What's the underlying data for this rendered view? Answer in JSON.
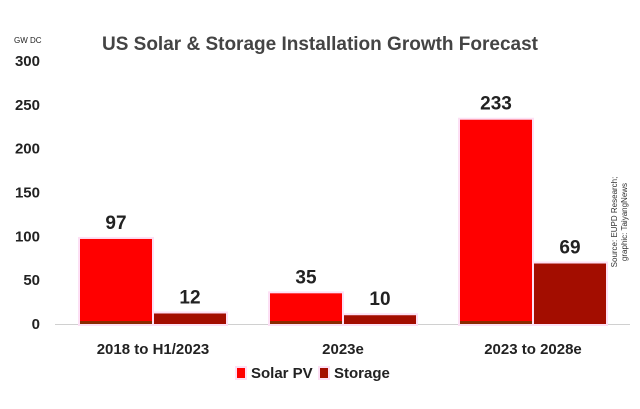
{
  "chart_data": {
    "type": "bar",
    "title": "US Solar & Storage Installation Growth Forecast",
    "ylabel": "GW DC",
    "xlabel": "",
    "ylim": [
      0,
      300
    ],
    "yticks": [
      0,
      50,
      100,
      150,
      200,
      250,
      300
    ],
    "categories": [
      "2018 to H1/2023",
      "2023e",
      "2023 to 2028e"
    ],
    "series": [
      {
        "name": "Solar PV",
        "color": "#ff0000",
        "values": [
          97,
          35,
          233
        ]
      },
      {
        "name": "Storage",
        "color": "#a30d00",
        "values": [
          12,
          10,
          69
        ]
      }
    ],
    "legend": "bottom",
    "grid": false,
    "annotation": "Source: EUPD Research; graphic: TaiyangNews"
  }
}
